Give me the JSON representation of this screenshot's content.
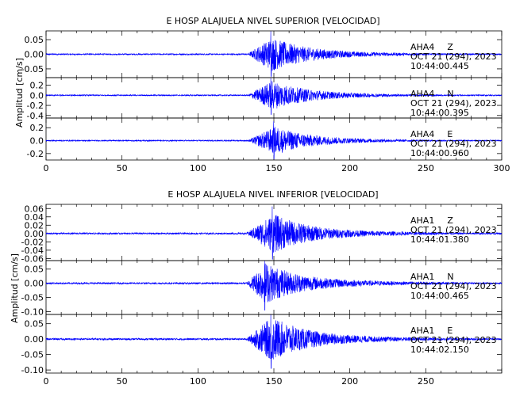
{
  "chart_data": [
    {
      "type": "line",
      "title": "E HOSP ALAJUELA NIVEL SUPERIOR [VELOCIDAD]",
      "ylabel": "Amplitud [cm/s]",
      "xlim": [
        0,
        300
      ],
      "xticks": [
        "0",
        "50",
        "100",
        "150",
        "200",
        "250",
        "300"
      ],
      "line_color": "#0000ff",
      "traces": [
        {
          "station": "AHA4",
          "component": "Z",
          "date": "OCT 21 (294), 2023",
          "time": "10:44:00.445",
          "ylim": [
            -0.08,
            0.08
          ],
          "yticks": [
            "0.05",
            "0.00",
            "-0.05"
          ],
          "ytick_values": [
            0.05,
            0.0,
            -0.05
          ],
          "onset_s": 133,
          "peak_s": 148,
          "peak_amplitude": 0.08,
          "coda_end_s": 260
        },
        {
          "station": "AHA4",
          "component": "N",
          "date": "OCT 21 (294), 2023",
          "time": "10:44:00.395",
          "ylim": [
            -0.45,
            0.35
          ],
          "yticks": [
            "0.2",
            "0.0",
            "-0.2",
            "-0.4"
          ],
          "ytick_values": [
            0.2,
            0.0,
            -0.2,
            -0.4
          ],
          "onset_s": 133,
          "peak_s": 148,
          "peak_amplitude": 0.4,
          "coda_end_s": 260
        },
        {
          "station": "AHA4",
          "component": "E",
          "date": "OCT 21 (294), 2023",
          "time": "10:44:00.960",
          "ylim": [
            -0.3,
            0.35
          ],
          "yticks": [
            "0.2",
            "0.0",
            "-0.2"
          ],
          "ytick_values": [
            0.2,
            0.0,
            -0.2
          ],
          "onset_s": 133,
          "peak_s": 150,
          "peak_amplitude": 0.3,
          "coda_end_s": 260
        }
      ]
    },
    {
      "type": "line",
      "title": "E HOSP ALAJUELA NIVEL INFERIOR [VELOCIDAD]",
      "ylabel": "Amplitud [cm/s]",
      "xlim": [
        0,
        300
      ],
      "xticks": [
        "0",
        "50",
        "100",
        "150",
        "200",
        "250"
      ],
      "line_color": "#0000ff",
      "traces": [
        {
          "station": "AHA1",
          "component": "Z",
          "date": "OCT 21 (294), 2023",
          "time": "10:44:01.380",
          "ylim": [
            -0.065,
            0.07
          ],
          "yticks": [
            "0.06",
            "0.04",
            "0.02",
            "0.00",
            "-0.02",
            "-0.04",
            "-0.06"
          ],
          "ytick_values": [
            0.06,
            0.04,
            0.02,
            0.0,
            -0.02,
            -0.04,
            -0.06
          ],
          "onset_s": 132,
          "peak_s": 149,
          "peak_amplitude": 0.065,
          "coda_end_s": 280
        },
        {
          "station": "AHA1",
          "component": "N",
          "date": "OCT 21 (294), 2023",
          "time": "10:44:00.465",
          "ylim": [
            -0.11,
            0.08
          ],
          "yticks": [
            "0.05",
            "0.00",
            "-0.05",
            "-0.10"
          ],
          "ytick_values": [
            0.05,
            0.0,
            -0.05,
            -0.1
          ],
          "onset_s": 132,
          "peak_s": 144,
          "peak_amplitude": 0.1,
          "coda_end_s": 280
        },
        {
          "station": "AHA1",
          "component": "E",
          "date": "OCT 21 (294), 2023",
          "time": "10:44:02.150",
          "ylim": [
            -0.11,
            0.08
          ],
          "yticks": [
            "0.05",
            "0.00",
            "-0.05",
            "-0.10"
          ],
          "ytick_values": [
            0.05,
            0.0,
            -0.05,
            -0.1
          ],
          "onset_s": 132,
          "peak_s": 148,
          "peak_amplitude": 0.1,
          "coda_end_s": 280
        }
      ]
    }
  ]
}
